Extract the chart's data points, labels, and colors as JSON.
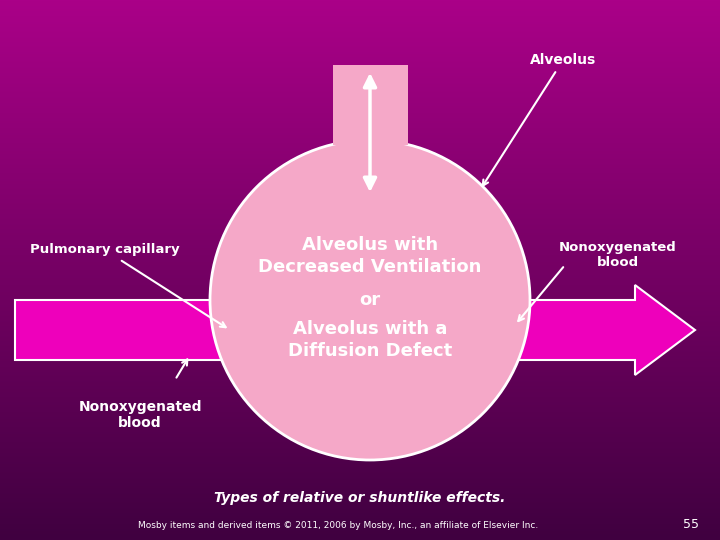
{
  "bg_color_top": "#AA0088",
  "bg_color_bottom": "#400040",
  "circle_color": "#F5A8C8",
  "circle_edge": "#FFFFFF",
  "arrow_color": "#EE00BB",
  "arrow_edge": "#FFFFFF",
  "white": "#FFFFFF",
  "text_line1": "Alveolus with",
  "text_line2": "Decreased Ventilation",
  "text_or": "or",
  "text_line3": "Alveolus with a",
  "text_line4": "Diffusion Defect",
  "label_alveolus": "Alveolus",
  "label_pulmonary": "Pulmonary capillary",
  "label_nono_right": "Nonoxygenated\nblood",
  "label_nono_bottom": "Nonoxygenated\nblood",
  "footer": "Types of relative or shuntlike effects.",
  "copyright": "Mosby items and derived items © 2011, 2006 by Mosby, Inc., an affiliate of Elsevier Inc.",
  "page_num": "55",
  "figw": 7.2,
  "figh": 5.4,
  "dpi": 100
}
